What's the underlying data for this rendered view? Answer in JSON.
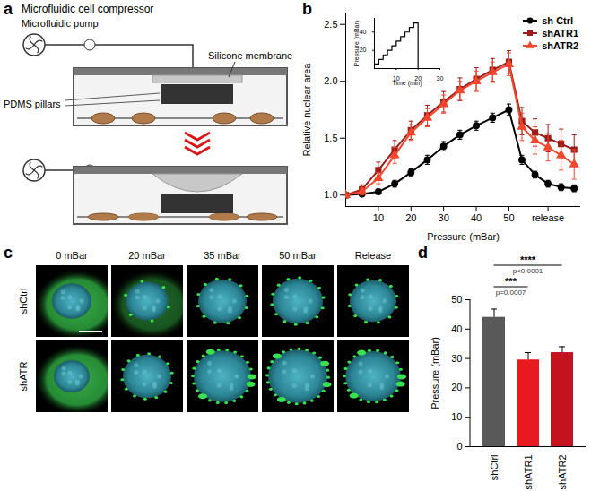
{
  "chart_data": [
    {
      "panel": "b",
      "type": "line",
      "x_label": "Pressure (mBar)",
      "y_label": "Relative nuclear area",
      "x": [
        0,
        5,
        10,
        15,
        20,
        25,
        30,
        35,
        40,
        45,
        50,
        54,
        58,
        62,
        66,
        70
      ],
      "xlim": [
        0,
        72
      ],
      "xticks": [
        10,
        20,
        30,
        40,
        50,
        {
          "value": 62,
          "label": "release"
        }
      ],
      "ylim": [
        0.9,
        2.6
      ],
      "yticks": [
        {
          "value": 1,
          "label": "1.0"
        },
        {
          "value": 1.5,
          "label": "1.5"
        },
        {
          "value": 2,
          "label": "2.0"
        },
        {
          "value": 2.5,
          "label": "2.5"
        }
      ],
      "legend": "top-right",
      "series": [
        {
          "name": "sh Ctrl",
          "color": "#000000",
          "marker": "circle",
          "values": [
            1.0,
            1.01,
            1.03,
            1.1,
            1.2,
            1.31,
            1.43,
            1.53,
            1.61,
            1.68,
            1.75,
            1.31,
            1.18,
            1.1,
            1.07,
            1.06
          ],
          "errors": [
            0.01,
            0.02,
            0.02,
            0.03,
            0.03,
            0.04,
            0.04,
            0.04,
            0.04,
            0.04,
            0.05,
            0.04,
            0.03,
            0.03,
            0.03,
            0.03
          ]
        },
        {
          "name": "shATR1",
          "color": "#9b1c1c",
          "marker": "square",
          "values": [
            1.0,
            1.05,
            1.22,
            1.4,
            1.57,
            1.7,
            1.82,
            1.93,
            2.02,
            2.1,
            2.17,
            1.65,
            1.55,
            1.5,
            1.45,
            1.4
          ],
          "errors": [
            0.01,
            0.04,
            0.07,
            0.08,
            0.08,
            0.09,
            0.09,
            0.1,
            0.1,
            0.1,
            0.1,
            0.12,
            0.12,
            0.12,
            0.13,
            0.13
          ]
        },
        {
          "name": "shATR2",
          "color": "#f0472d",
          "marker": "triangle",
          "values": [
            1.0,
            1.03,
            1.15,
            1.35,
            1.55,
            1.68,
            1.8,
            1.92,
            2.0,
            2.08,
            2.15,
            1.6,
            1.48,
            1.42,
            1.35,
            1.27
          ],
          "errors": [
            0.01,
            0.03,
            0.05,
            0.07,
            0.07,
            0.08,
            0.08,
            0.08,
            0.09,
            0.09,
            0.1,
            0.12,
            0.12,
            0.12,
            0.13,
            0.13
          ]
        }
      ]
    },
    {
      "type": "line",
      "line_style": "step",
      "x_label": "Time (min)",
      "y_label": "Pressure (mBar)",
      "color": "#000000",
      "x": [
        0,
        2,
        4,
        6,
        8,
        10,
        12,
        14,
        16,
        18,
        20
      ],
      "values": [
        5,
        10,
        15,
        20,
        25,
        30,
        35,
        40,
        45,
        50,
        0
      ],
      "xlim": [
        0,
        30
      ],
      "xticks": [
        10,
        20,
        30
      ],
      "ylim": [
        0,
        55
      ],
      "yticks": [
        20,
        40
      ]
    },
    {
      "panel": "d",
      "type": "bar",
      "y_label": "Pressure (mBar)",
      "categories": [
        "shCtrl",
        "shATR1",
        "shATR2"
      ],
      "values": [
        44,
        29.5,
        32
      ],
      "errors": [
        2.8,
        2.5,
        2
      ],
      "colors": [
        "#595959",
        "#e8191f",
        "#c4121f"
      ],
      "ylim": [
        0,
        50
      ],
      "yticks": [
        0,
        10,
        20,
        30,
        40,
        50
      ],
      "annotations": [
        {
          "from": "shCtrl",
          "to": "shATR1",
          "text": "***",
          "p": "p=0.0007"
        },
        {
          "from": "shCtrl",
          "to": "shATR2",
          "text": "****",
          "p": "p<0.0001"
        }
      ]
    }
  ],
  "diagram": {
    "panel": "a",
    "title": "Microfluidic cell compressor",
    "pump_label": "Microfluidic pump",
    "membrane_label": "Silicone membrane",
    "pillars_label": "PDMS pillars"
  },
  "images": {
    "panel": "c",
    "column_labels": [
      "0 mBar",
      "20 mBar",
      "35 mBar",
      "50 mBar",
      "Release"
    ],
    "row_labels": [
      "shCtrl",
      "shATR"
    ]
  }
}
